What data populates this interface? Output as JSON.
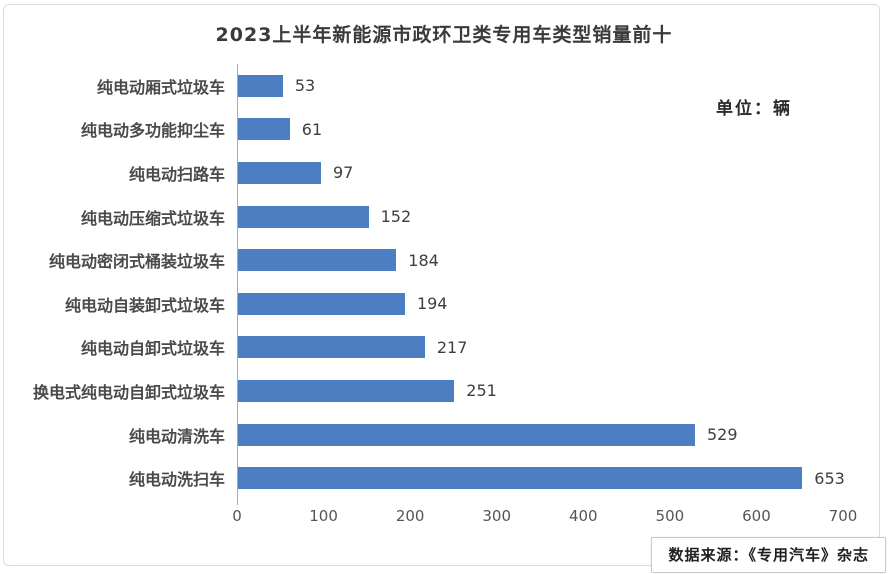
{
  "title": "2023上半年新能源市政环卫类专用车类型销量前十",
  "unit_label": "单位：辆",
  "source_label": "数据来源：《专用汽车》杂志",
  "colors": {
    "bar": "#4d7ec1",
    "title_text": "#3a3a3a",
    "label_text": "#4a4a4a",
    "axis_line": "#a3aab3",
    "frame_border": "#d9d9e2"
  },
  "chart_data": {
    "type": "bar",
    "orientation": "horizontal",
    "title": "2023上半年新能源市政环卫类专用车类型销量前十",
    "unit": "辆",
    "categories": [
      "纯电动厢式垃圾车",
      "纯电动多功能抑尘车",
      "纯电动扫路车",
      "纯电动压缩式垃圾车",
      "纯电动密闭式桶装垃圾车",
      "纯电动自装卸式垃圾车",
      "纯电动自卸式垃圾车",
      "换电式纯电动自卸式垃圾车",
      "纯电动清洗车",
      "纯电动洗扫车"
    ],
    "values": [
      53,
      61,
      97,
      152,
      184,
      194,
      217,
      251,
      529,
      653
    ],
    "xlim": [
      0,
      700
    ],
    "x_ticks": [
      0,
      100,
      200,
      300,
      400,
      500,
      600,
      700
    ],
    "grid": false,
    "legend": false,
    "value_labels": true
  }
}
